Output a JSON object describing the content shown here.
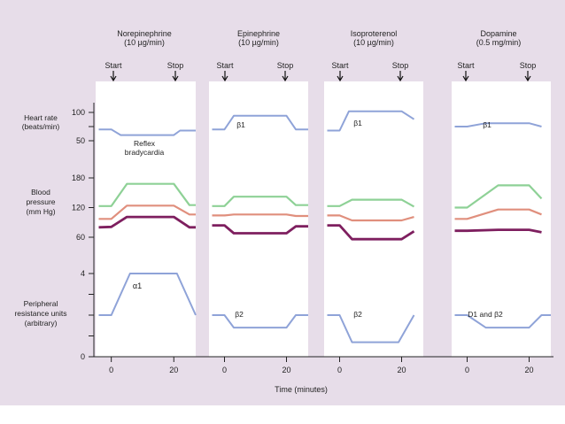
{
  "chart_data": {
    "type": "line",
    "x_axis": {
      "label": "Time (minutes)",
      "ticks": [
        0,
        20
      ],
      "range": [
        -5,
        27
      ]
    },
    "y_sections": {
      "heart_rate": {
        "label_lines": [
          "Heart rate",
          "(beats/min)"
        ],
        "ticks": [
          50,
          100
        ],
        "range": [
          45,
          110
        ]
      },
      "blood_pressure": {
        "label_lines": [
          "Blood",
          "pressure",
          "(mm Hg)"
        ],
        "ticks": [
          60,
          120,
          180
        ],
        "range": [
          50,
          190
        ]
      },
      "resistance": {
        "label_lines": [
          "Peripheral",
          "resistance units",
          "(arbitrary)"
        ],
        "ticks": [
          0,
          4
        ],
        "range": [
          0,
          4.3
        ]
      }
    },
    "colors": {
      "hr": "#8fa3d8",
      "systolic": "#8ed196",
      "mean": "#e08f7d",
      "diastolic": "#7e1f5f",
      "resistance": "#8fa3d8",
      "panel_bg": "#e7dde9"
    },
    "panels": [
      {
        "drug": "Norepinephrine",
        "dose": "(10 µg/min)",
        "start_label": "Start",
        "stop_label": "Stop",
        "hr_annotation": [
          "Reflex",
          "bradycardia"
        ],
        "res_annotation": "α1",
        "hr": [
          [
            -4,
            70
          ],
          [
            0,
            70
          ],
          [
            3,
            60
          ],
          [
            20,
            60
          ],
          [
            22,
            68
          ],
          [
            27,
            68
          ]
        ],
        "systolic": [
          [
            -4,
            123
          ],
          [
            0,
            123
          ],
          [
            5,
            168
          ],
          [
            20,
            168
          ],
          [
            25,
            125
          ],
          [
            27,
            125
          ]
        ],
        "mean": [
          [
            -4,
            97
          ],
          [
            0,
            97
          ],
          [
            5,
            124
          ],
          [
            20,
            124
          ],
          [
            25,
            106
          ],
          [
            27,
            106
          ]
        ],
        "diastolic": [
          [
            -4,
            80
          ],
          [
            0,
            81
          ],
          [
            5,
            101
          ],
          [
            20,
            101
          ],
          [
            25,
            80
          ],
          [
            27,
            80
          ]
        ],
        "resistance": [
          [
            -4,
            2
          ],
          [
            0,
            2
          ],
          [
            6,
            4
          ],
          [
            21,
            4
          ],
          [
            27,
            2
          ]
        ]
      },
      {
        "drug": "Epinephrine",
        "dose": "(10 µg/min)",
        "start_label": "Start",
        "stop_label": "Stop",
        "hr_annotation": [],
        "res_annotation": "β2",
        "hr": [
          [
            -4,
            70
          ],
          [
            0,
            70
          ],
          [
            3,
            94
          ],
          [
            20,
            94
          ],
          [
            23,
            70
          ],
          [
            27,
            70
          ]
        ],
        "systolic": [
          [
            -4,
            123
          ],
          [
            0,
            123
          ],
          [
            3,
            142
          ],
          [
            20,
            142
          ],
          [
            23,
            125
          ],
          [
            27,
            125
          ]
        ],
        "mean": [
          [
            -4,
            104
          ],
          [
            0,
            104
          ],
          [
            3,
            106
          ],
          [
            20,
            106
          ],
          [
            23,
            103
          ],
          [
            27,
            103
          ]
        ],
        "diastolic": [
          [
            -4,
            84
          ],
          [
            0,
            84
          ],
          [
            3,
            68
          ],
          [
            20,
            68
          ],
          [
            23,
            82
          ],
          [
            27,
            82
          ]
        ],
        "resistance": [
          [
            -4,
            2
          ],
          [
            0,
            2
          ],
          [
            3,
            1.4
          ],
          [
            20,
            1.4
          ],
          [
            23,
            2
          ],
          [
            27,
            2
          ]
        ]
      },
      {
        "drug": "Isoproterenol",
        "dose": "(10 µg/min)",
        "start_label": "Start",
        "stop_label": "Stop",
        "hr_annotation": [],
        "res_annotation": "β1",
        "hr": [
          [
            -4,
            68
          ],
          [
            0,
            68
          ],
          [
            3,
            102
          ],
          [
            20,
            102
          ],
          [
            24,
            88
          ]
        ],
        "systolic": [
          [
            -4,
            123
          ],
          [
            0,
            123
          ],
          [
            4,
            136
          ],
          [
            20,
            136
          ],
          [
            24,
            122
          ]
        ],
        "mean": [
          [
            -4,
            104
          ],
          [
            0,
            104
          ],
          [
            4,
            94
          ],
          [
            20,
            94
          ],
          [
            24,
            101
          ]
        ],
        "diastolic": [
          [
            -4,
            84
          ],
          [
            0,
            84
          ],
          [
            4,
            56
          ],
          [
            20,
            56
          ],
          [
            24,
            72
          ]
        ],
        "resistance": [
          [
            -4,
            2
          ],
          [
            0,
            2
          ],
          [
            4,
            0.7
          ],
          [
            19,
            0.7
          ],
          [
            24,
            2
          ]
        ]
      },
      {
        "drug": "Dopamine",
        "dose": "(0.5 mg/min)",
        "start_label": "Start",
        "stop_label": "Stop",
        "hr_annotation": [],
        "res_annotation": "D1 and β2",
        "hr": [
          [
            -4,
            75
          ],
          [
            0,
            75
          ],
          [
            6,
            81
          ],
          [
            20,
            81
          ],
          [
            24,
            75
          ]
        ],
        "systolic": [
          [
            -4,
            120
          ],
          [
            0,
            120
          ],
          [
            10,
            165
          ],
          [
            20,
            165
          ],
          [
            24,
            138
          ]
        ],
        "mean": [
          [
            -4,
            97
          ],
          [
            0,
            97
          ],
          [
            10,
            116
          ],
          [
            20,
            116
          ],
          [
            24,
            106
          ]
        ],
        "diastolic": [
          [
            -4,
            73
          ],
          [
            0,
            73
          ],
          [
            10,
            75
          ],
          [
            20,
            75
          ],
          [
            24,
            70
          ]
        ],
        "resistance": [
          [
            -4,
            2
          ],
          [
            0,
            2
          ],
          [
            6,
            1.4
          ],
          [
            20,
            1.4
          ],
          [
            24,
            2
          ],
          [
            27,
            2
          ]
        ]
      }
    ]
  }
}
